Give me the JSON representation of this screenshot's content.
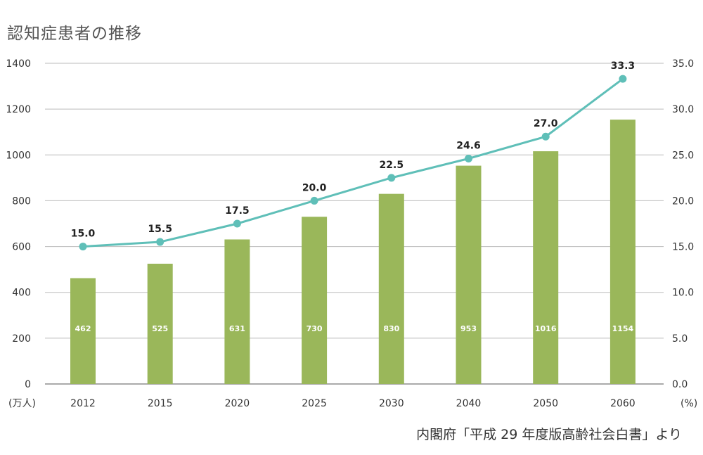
{
  "title": "認知症患者の推移",
  "source": "内閣府「平成 29 年度版高齢社会白書」より",
  "chart_data": {
    "type": "bar+line",
    "categories": [
      "2012",
      "2015",
      "2020",
      "2025",
      "2030",
      "2040",
      "2050",
      "2060"
    ],
    "series": [
      {
        "type": "bar",
        "axis": "left",
        "values": [
          462,
          525,
          631,
          730,
          830,
          953,
          1016,
          1154
        ],
        "color": "#9ab75a"
      },
      {
        "type": "line",
        "axis": "right",
        "values": [
          15.0,
          15.5,
          17.5,
          20.0,
          22.5,
          24.6,
          27.0,
          33.3
        ],
        "color": "#5fbfb8"
      }
    ],
    "y_left": {
      "unit": "(万人)",
      "ylim": [
        0,
        1400
      ],
      "ticks": [
        "0",
        "200",
        "400",
        "600",
        "800",
        "1000",
        "1200",
        "1400"
      ]
    },
    "y_right": {
      "unit": "(%)",
      "ylim": [
        0,
        35
      ],
      "ticks": [
        "0.0",
        "5.0",
        "10.0",
        "15.0",
        "20.0",
        "25.0",
        "30.0",
        "35.0"
      ]
    },
    "grid": true,
    "gridline_color": "#bbbbbb",
    "baseline_color": "#777777"
  }
}
